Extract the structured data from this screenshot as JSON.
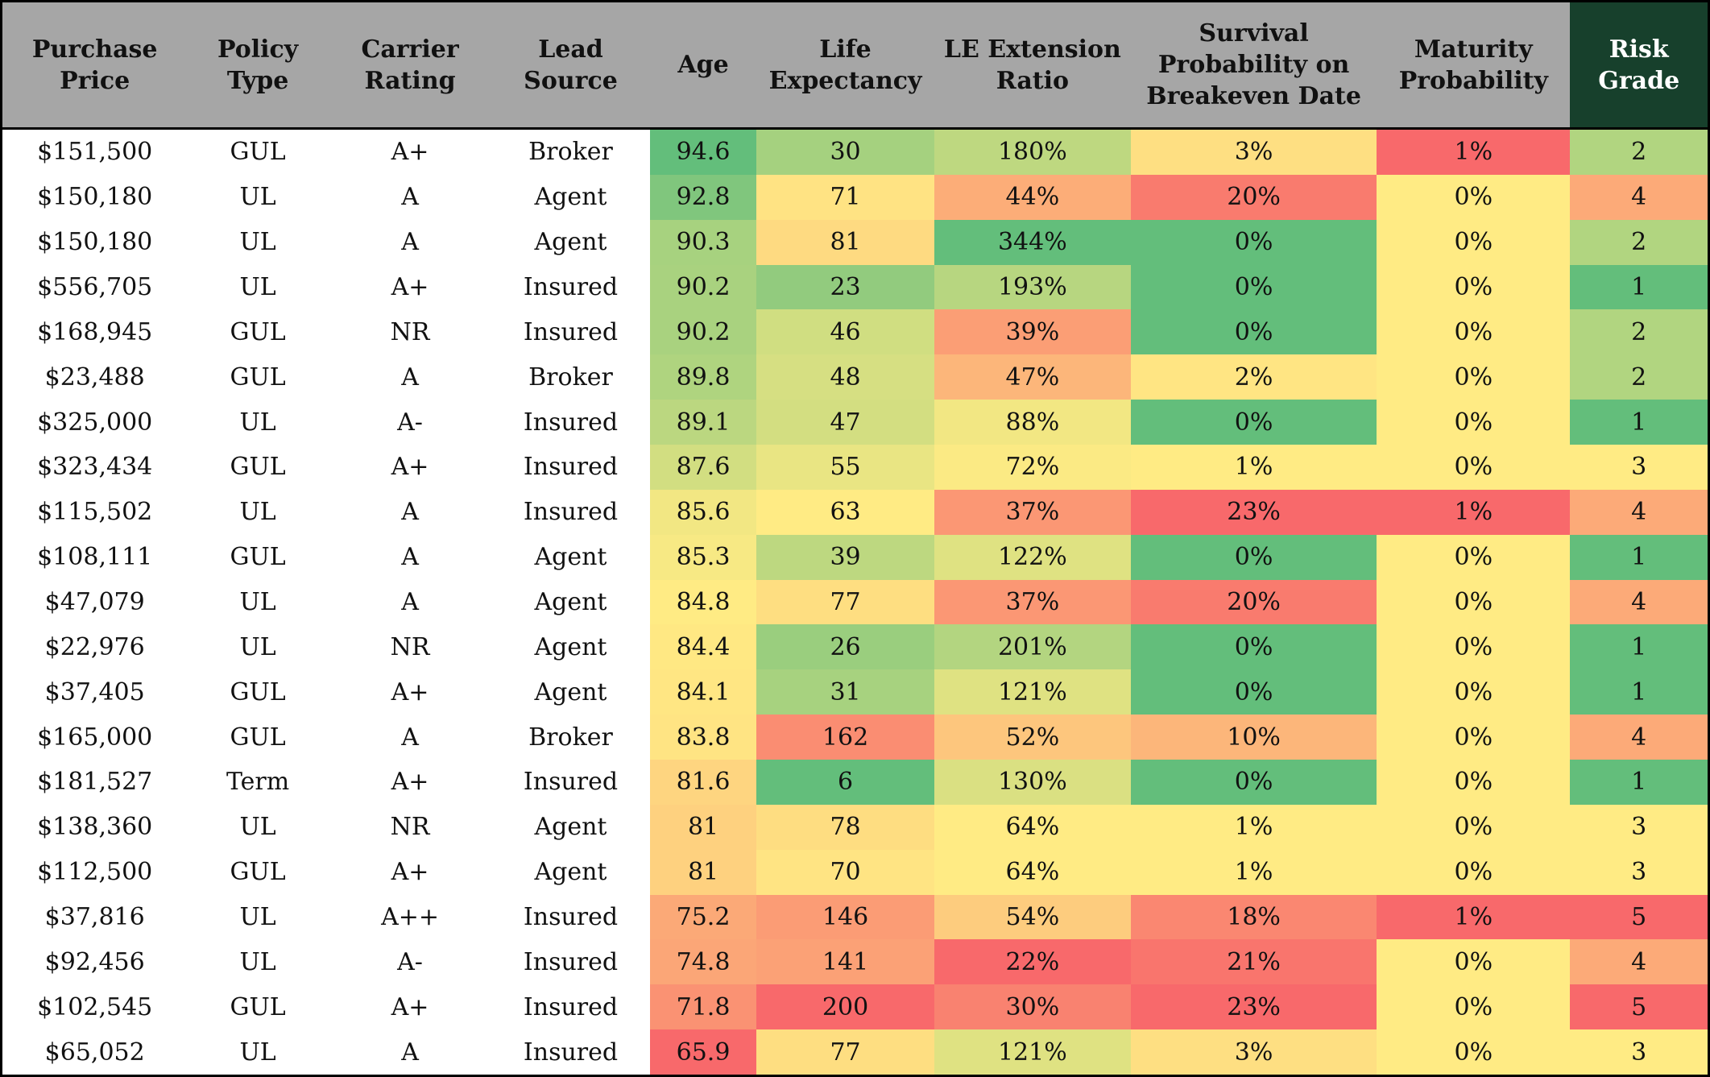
{
  "table": {
    "headers": [
      "Purchase Price",
      "Policy Type",
      "Carrier Rating",
      "Lead Source",
      "Age",
      "Life Expectancy",
      "LE Extension Ratio",
      "Survival Probability on Breakeven Date",
      "Maturity Probability",
      "Risk Grade"
    ],
    "rows": [
      [
        "$151,500",
        "GUL",
        "A+",
        "Broker",
        "94.6",
        "30",
        "180%",
        "3%",
        "1%",
        "2"
      ],
      [
        "$150,180",
        "UL",
        "A",
        "Agent",
        "92.8",
        "71",
        "44%",
        "20%",
        "0%",
        "4"
      ],
      [
        "$150,180",
        "UL",
        "A",
        "Agent",
        "90.3",
        "81",
        "344%",
        "0%",
        "0%",
        "2"
      ],
      [
        "$556,705",
        "UL",
        "A+",
        "Insured",
        "90.2",
        "23",
        "193%",
        "0%",
        "0%",
        "1"
      ],
      [
        "$168,945",
        "GUL",
        "NR",
        "Insured",
        "90.2",
        "46",
        "39%",
        "0%",
        "0%",
        "2"
      ],
      [
        "$23,488",
        "GUL",
        "A",
        "Broker",
        "89.8",
        "48",
        "47%",
        "2%",
        "0%",
        "2"
      ],
      [
        "$325,000",
        "UL",
        "A-",
        "Insured",
        "89.1",
        "47",
        "88%",
        "0%",
        "0%",
        "1"
      ],
      [
        "$323,434",
        "GUL",
        "A+",
        "Insured",
        "87.6",
        "55",
        "72%",
        "1%",
        "0%",
        "3"
      ],
      [
        "$115,502",
        "UL",
        "A",
        "Insured",
        "85.6",
        "63",
        "37%",
        "23%",
        "1%",
        "4"
      ],
      [
        "$108,111",
        "GUL",
        "A",
        "Agent",
        "85.3",
        "39",
        "122%",
        "0%",
        "0%",
        "1"
      ],
      [
        "$47,079",
        "UL",
        "A",
        "Agent",
        "84.8",
        "77",
        "37%",
        "20%",
        "0%",
        "4"
      ],
      [
        "$22,976",
        "UL",
        "NR",
        "Agent",
        "84.4",
        "26",
        "201%",
        "0%",
        "0%",
        "1"
      ],
      [
        "$37,405",
        "GUL",
        "A+",
        "Agent",
        "84.1",
        "31",
        "121%",
        "0%",
        "0%",
        "1"
      ],
      [
        "$165,000",
        "GUL",
        "A",
        "Broker",
        "83.8",
        "162",
        "52%",
        "10%",
        "0%",
        "4"
      ],
      [
        "$181,527",
        "Term",
        "A+",
        "Insured",
        "81.6",
        "6",
        "130%",
        "0%",
        "0%",
        "1"
      ],
      [
        "$138,360",
        "UL",
        "NR",
        "Agent",
        "81",
        "78",
        "64%",
        "1%",
        "0%",
        "3"
      ],
      [
        "$112,500",
        "GUL",
        "A+",
        "Agent",
        "81",
        "70",
        "64%",
        "1%",
        "0%",
        "3"
      ],
      [
        "$37,816",
        "UL",
        "A++",
        "Insured",
        "75.2",
        "146",
        "54%",
        "18%",
        "1%",
        "5"
      ],
      [
        "$92,456",
        "UL",
        "A-",
        "Insured",
        "74.8",
        "141",
        "22%",
        "21%",
        "0%",
        "4"
      ],
      [
        "$102,545",
        "GUL",
        "A+",
        "Insured",
        "71.8",
        "200",
        "30%",
        "23%",
        "0%",
        "5"
      ],
      [
        "$65,052",
        "UL",
        "A",
        "Insured",
        "65.9",
        "77",
        "121%",
        "3%",
        "0%",
        "3"
      ]
    ]
  }
}
